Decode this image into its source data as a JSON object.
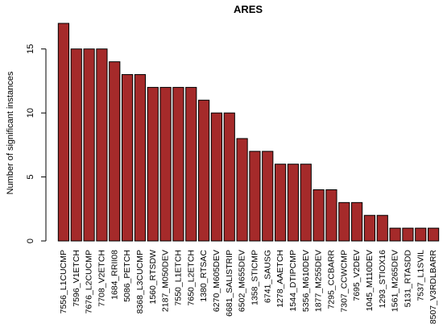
{
  "chart_data": {
    "type": "bar",
    "title": "ARES",
    "xlabel": "",
    "ylabel": "Number of significant instances",
    "ylim": [
      0,
      17
    ],
    "yticks": [
      0,
      5,
      10,
      15
    ],
    "bar_color": "#a52a2a",
    "grid": false,
    "categories": [
      "7556_L1CUCMP",
      "7596_V1ETCH",
      "7676_L2CUCMP",
      "7708_V2ETCH",
      "1684_RRII08",
      "5086_PETCH",
      "8368_L3CUCMP",
      "1560_RTSDW",
      "2187_M050DEV",
      "7550_L1ETCH",
      "7650_L2ETCH",
      "1380_RTSAC",
      "6270_M605DEV",
      "6681_SALISTRIP",
      "6502_M655DEV",
      "1358_STICMP",
      "6741_SAUSG",
      "1278_AAETCH",
      "1544_DTIPCMP",
      "5356_M610DEV",
      "1877_M255DEV",
      "7295_CCBARR",
      "7307_CCWCMP",
      "7695_V2DEV",
      "1045_M110DEV",
      "1293_STIOX16",
      "1561_M265DEV",
      "5131_RTASDD",
      "7537_L1SVIL",
      "8507_V3RDLBARR"
    ],
    "values": [
      17,
      15,
      15,
      15,
      14,
      13,
      13,
      12,
      12,
      12,
      12,
      11,
      10,
      10,
      8,
      7,
      7,
      6,
      6,
      6,
      4,
      4,
      3,
      3,
      2,
      2,
      1,
      1,
      1,
      1
    ]
  }
}
